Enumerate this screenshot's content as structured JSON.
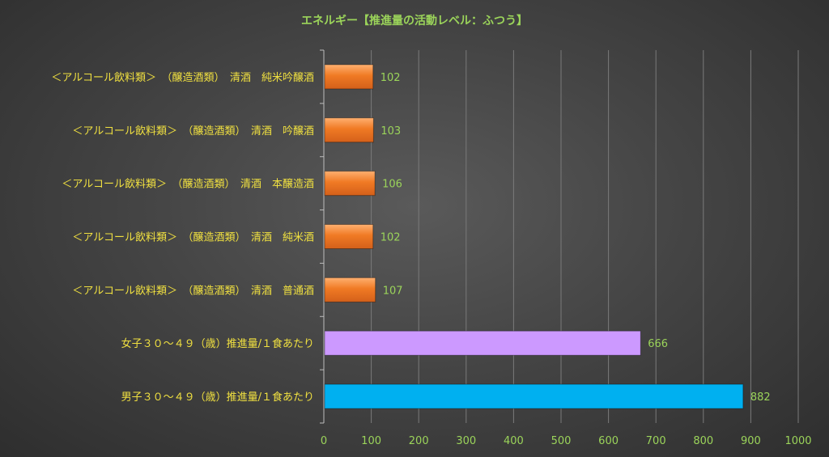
{
  "chart_data": {
    "type": "bar",
    "orientation": "horizontal",
    "title": "エネルギー【推進量の活動レベル：ふつう】",
    "categories": [
      "＜アルコール飲料類＞　（醸造酒類）　清酒　純米吟醸酒",
      "＜アルコール飲料類＞　（醸造酒類）　清酒　吟醸酒",
      "＜アルコール飲料類＞　（醸造酒類）　清酒　本醸造酒",
      "＜アルコール飲料類＞　（醸造酒類）　清酒　純米酒",
      "＜アルコール飲料類＞　（醸造酒類）　清酒　普通酒",
      "女子３０～４９（歳）推進量/１食あたり",
      "男子３０～４９（歳）推進量/１食あたり"
    ],
    "values": [
      102,
      103,
      106,
      102,
      107,
      666,
      882
    ],
    "bar_colors": [
      "#f07a24",
      "#f07a24",
      "#f07a24",
      "#f07a24",
      "#f07a24",
      "#cc99ff",
      "#00b0f0"
    ],
    "xlim": [
      0,
      1000
    ],
    "xticks": [
      0,
      100,
      200,
      300,
      400,
      500,
      600,
      700,
      800,
      900,
      1000
    ],
    "grid": true,
    "legend": "none"
  }
}
